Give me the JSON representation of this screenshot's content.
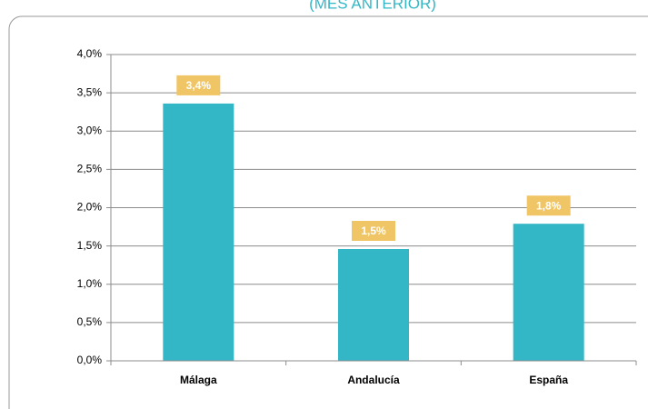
{
  "chart_data": {
    "type": "bar",
    "title": "(MES ANTERIOR)",
    "categories": [
      "Málaga",
      "Andalucía",
      "España"
    ],
    "values": [
      3.36,
      1.46,
      1.79
    ],
    "value_labels": [
      "3,4%",
      "1,5%",
      "1,8%"
    ],
    "color": "#33b7c6",
    "label_color": "#f0c566",
    "ylim": [
      0,
      4
    ],
    "yticks": [
      {
        "value": 0,
        "label": "0,0%"
      },
      {
        "value": 0.5,
        "label": "0,5%"
      },
      {
        "value": 1,
        "label": "1,0%"
      },
      {
        "value": 1.5,
        "label": "1,5%"
      },
      {
        "value": 2,
        "label": "2,0%"
      },
      {
        "value": 2.5,
        "label": "2,5%"
      },
      {
        "value": 3,
        "label": "3,0%"
      },
      {
        "value": 3.5,
        "label": "3,5%"
      },
      {
        "value": 4,
        "label": "4,0%"
      }
    ],
    "grid": true
  }
}
